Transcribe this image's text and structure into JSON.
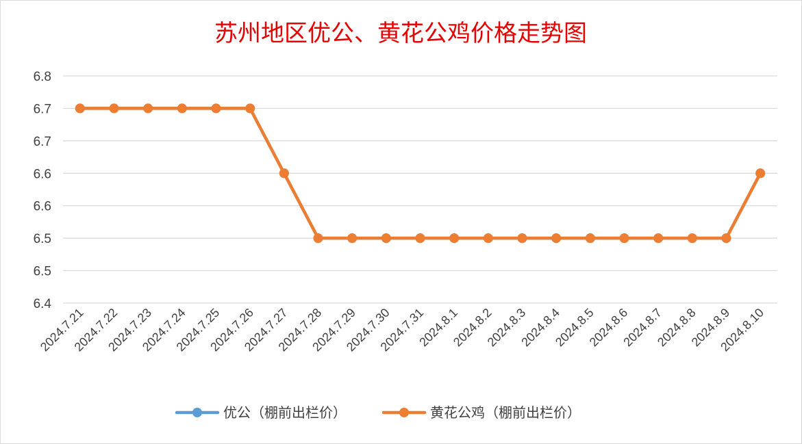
{
  "chart_data": {
    "type": "line",
    "title": "苏州地区优公、黄花公鸡价格走势图",
    "categories": [
      "2024.7.21",
      "2024.7.22",
      "2024.7.23",
      "2024.7.24",
      "2024.7.25",
      "2024.7.26",
      "2024.7.27",
      "2024.7.28",
      "2024.7.29",
      "2024.7.30",
      "2024.7.31",
      "2024.8.1",
      "2024.8.2",
      "2024.8.3",
      "2024.8.4",
      "2024.8.5",
      "2024.8.6",
      "2024.8.7",
      "2024.8.8",
      "2024.8.9",
      "2024.8.10"
    ],
    "y_tick_labels": [
      "6.4",
      "6.5",
      "6.5",
      "6.6",
      "6.6",
      "6.7",
      "6.7",
      "6.8"
    ],
    "ylim": [
      6.4,
      6.75
    ],
    "grid": true,
    "legend_position": "bottom",
    "series": [
      {
        "name": "优公（棚前出栏价）",
        "color": "#5b9bd5",
        "values": [
          6.7,
          6.7,
          6.7,
          6.7,
          6.7,
          6.7,
          6.6,
          6.5,
          6.5,
          6.5,
          6.5,
          6.5,
          6.5,
          6.5,
          6.5,
          6.5,
          6.5,
          6.5,
          6.5,
          6.5,
          6.6
        ]
      },
      {
        "name": "黄花公鸡（棚前出栏价）",
        "color": "#ed7d31",
        "values": [
          6.7,
          6.7,
          6.7,
          6.7,
          6.7,
          6.7,
          6.6,
          6.5,
          6.5,
          6.5,
          6.5,
          6.5,
          6.5,
          6.5,
          6.5,
          6.5,
          6.5,
          6.5,
          6.5,
          6.5,
          6.6
        ]
      }
    ]
  }
}
